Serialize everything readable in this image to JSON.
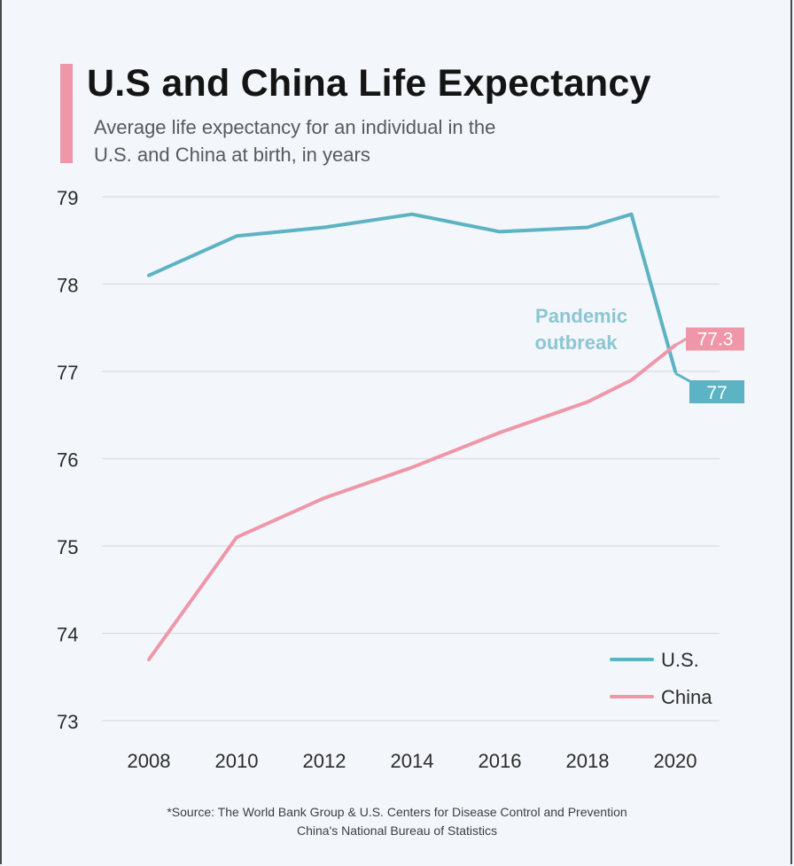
{
  "title": "U.S and China Life Expectancy",
  "subtitle_line1": "Average life expectancy for an individual in the",
  "subtitle_line2": "U.S. and China at birth, in years",
  "source_line1": "*Source: The World Bank Group & U.S. Centers for Disease Control and Prevention",
  "source_line2": "China's National Bureau of Statistics",
  "colors": {
    "accent": "#ef97a8",
    "us": "#5cb3c3",
    "china": "#ef97a8",
    "grid": "#d9dde3",
    "annotation": "#8cc6d2"
  },
  "chart_data": {
    "type": "line",
    "title": "U.S and China Life Expectancy",
    "subtitle": "Average life expectancy for an individual in the U.S. and China at birth, in years",
    "xlabel": "",
    "ylabel": "",
    "xlim": [
      2008,
      2020
    ],
    "ylim": [
      73,
      79
    ],
    "x_ticks": [
      "2008",
      "2010",
      "2012",
      "2014",
      "2016",
      "2018",
      "2020"
    ],
    "y_ticks": [
      "73",
      "74",
      "75",
      "76",
      "77",
      "78",
      "79"
    ],
    "grid": true,
    "legend_position": "bottom-right",
    "series": [
      {
        "name": "U.S.",
        "color": "#5cb3c3",
        "points": [
          [
            2008,
            78.1
          ],
          [
            2010,
            78.55
          ],
          [
            2012,
            78.65
          ],
          [
            2014,
            78.8
          ],
          [
            2016,
            78.6
          ],
          [
            2018,
            78.65
          ],
          [
            2019,
            78.8
          ],
          [
            2020,
            77.0
          ]
        ],
        "end_label": "77"
      },
      {
        "name": "China",
        "color": "#ef97a8",
        "points": [
          [
            2008,
            73.7
          ],
          [
            2010,
            75.1
          ],
          [
            2012,
            75.55
          ],
          [
            2014,
            75.9
          ],
          [
            2016,
            76.3
          ],
          [
            2018,
            76.65
          ],
          [
            2019,
            76.9
          ],
          [
            2020,
            77.3
          ]
        ],
        "end_label": "77.3"
      }
    ],
    "annotations": [
      "Pandemic",
      "outbreak"
    ]
  }
}
